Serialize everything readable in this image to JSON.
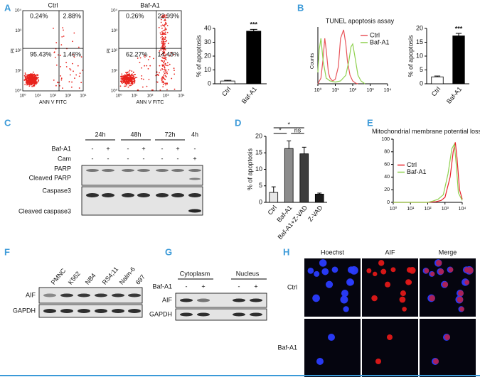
{
  "panel_labels": [
    "A",
    "B",
    "C",
    "D",
    "E",
    "F",
    "G",
    "H"
  ],
  "flow_plots": {
    "axis_ticks": [
      "10⁰",
      "10¹",
      "10²",
      "10³",
      "10⁴"
    ],
    "x_label": "ANN V FITC",
    "y_label": "PI",
    "plots": [
      {
        "title": "Ctrl",
        "quadrants": [
          "0.24%",
          "2.88%",
          "95.43%",
          "1.46%"
        ]
      },
      {
        "title": "Baf-A1",
        "quadrants": [
          "0.26%",
          "22.99%",
          "62.27%",
          "14.48%"
        ]
      }
    ]
  },
  "chart_data": [
    {
      "type": "bar",
      "ylabel": "% of apoptosis",
      "categories": [
        "Ctrl",
        "Baf-A1"
      ],
      "values": [
        2,
        38
      ],
      "errors": [
        0.5,
        1.3
      ],
      "colors": [
        "#ffffff",
        "#000000"
      ],
      "ylim": [
        0,
        40
      ],
      "yticks": [
        0,
        10,
        20,
        30,
        40
      ],
      "annotations": [
        "***"
      ]
    },
    {
      "type": "line",
      "title": "TUNEL apoptosis assay",
      "ylabel": "Counts",
      "xscale": "log",
      "xlim": [
        1,
        10000
      ],
      "xticks": [
        {
          "value": 1,
          "label": "10⁰"
        },
        {
          "value": 10,
          "label": "10¹"
        },
        {
          "value": 100,
          "label": "10²"
        },
        {
          "value": 1000,
          "label": "10³"
        },
        {
          "value": 10000,
          "label": "10⁴"
        }
      ],
      "ylim": [
        0,
        100
      ],
      "legend": "upper right",
      "series": [
        {
          "name": "Ctrl",
          "color": "#e8545a",
          "x": [
            1,
            1.5,
            2,
            2.5,
            3,
            4,
            5,
            7,
            10,
            15,
            20,
            30,
            40,
            50,
            70,
            100,
            150,
            200
          ],
          "values": [
            0,
            10,
            45,
            80,
            60,
            20,
            10,
            5,
            8,
            30,
            80,
            95,
            70,
            40,
            15,
            5,
            1,
            0
          ]
        },
        {
          "name": "Baf-A1",
          "color": "#8fd14f",
          "x": [
            1,
            1.2,
            1.5,
            2,
            3,
            5,
            10,
            20,
            40,
            60,
            80,
            100,
            130,
            200,
            300,
            500
          ],
          "values": [
            20,
            60,
            80,
            40,
            10,
            5,
            3,
            5,
            15,
            40,
            65,
            70,
            50,
            15,
            5,
            0
          ]
        }
      ]
    },
    {
      "type": "bar",
      "ylabel": "% of apoptosis",
      "categories": [
        "Ctrl",
        "Baf-A1"
      ],
      "values": [
        2.5,
        17.3
      ],
      "errors": [
        0.3,
        0.9
      ],
      "colors": [
        "#ffffff",
        "#000000"
      ],
      "ylim": [
        0,
        20
      ],
      "yticks": [
        0,
        5,
        10,
        15,
        20
      ],
      "annotations": [
        "***"
      ]
    },
    {
      "type": "bar",
      "ylabel": "% of apoptosis",
      "categories": [
        "Ctrl",
        "Baf-A1",
        "Baf-A1+Z-VAD",
        "Z-VAD"
      ],
      "values": [
        3,
        16.3,
        14.7,
        2.5
      ],
      "errors": [
        1.7,
        2.3,
        2,
        0.3
      ],
      "colors": [
        "#e6e6e6",
        "#8c8c8c",
        "#3c3c3c",
        "#1a1a1a"
      ],
      "ylim": [
        0,
        20
      ],
      "yticks": [
        0,
        5,
        10,
        15,
        20
      ],
      "annotations": [
        "*",
        "*",
        "ns"
      ]
    },
    {
      "type": "line",
      "title": "Mitochondrial membrane potential loss",
      "xscale": "log",
      "xlim": [
        1,
        10000
      ],
      "xticks": [
        {
          "value": 1,
          "label": "10⁰"
        },
        {
          "value": 10,
          "label": "10¹"
        },
        {
          "value": 100,
          "label": "10²"
        },
        {
          "value": 1000,
          "label": "10³"
        },
        {
          "value": 10000,
          "label": "10⁴"
        }
      ],
      "ylim": [
        0,
        100
      ],
      "yticks": [
        0,
        20,
        40,
        60,
        80,
        100
      ],
      "legend": "center left",
      "series": [
        {
          "name": "Ctrl",
          "color": "#e8232a",
          "x": [
            1,
            100,
            300,
            600,
            1000,
            2000,
            3000,
            4000,
            5000,
            7000,
            10000
          ],
          "values": [
            0,
            0,
            1,
            3,
            8,
            40,
            80,
            95,
            70,
            20,
            5
          ]
        },
        {
          "name": "Baf-A1",
          "color": "#8fd14f",
          "x": [
            1,
            100,
            200,
            400,
            800,
            1500,
            2500,
            3500,
            4500,
            6000,
            10000
          ],
          "values": [
            0,
            0,
            2,
            5,
            12,
            45,
            85,
            92,
            60,
            15,
            3
          ]
        }
      ]
    }
  ],
  "blot_c": {
    "times": [
      "24h",
      "48h",
      "72h",
      "4h"
    ],
    "rows": [
      {
        "label": "Baf-A1",
        "signs": [
          "-",
          "+",
          "-",
          "+",
          "-",
          "+",
          "-"
        ]
      },
      {
        "label": "Cam",
        "signs": [
          "-",
          "-",
          "-",
          "-",
          "-",
          "-",
          "+"
        ]
      }
    ],
    "bands": [
      "PARP",
      "Cleaved PARP",
      "Caspase3",
      "Cleaved caspase3"
    ]
  },
  "blot_f": {
    "lanes": [
      "PMNC",
      "K562",
      "NB4",
      "RS4;11",
      "Nalm-6",
      "697"
    ],
    "bands": [
      "AIF",
      "GAPDH"
    ]
  },
  "blot_g": {
    "groups": [
      "Cytoplasm",
      "Nucleus"
    ],
    "row": {
      "label": "Baf-A1",
      "signs": [
        "-",
        "+",
        "-",
        "+"
      ]
    },
    "bands": [
      "AIF",
      "GAPDH"
    ]
  },
  "micrographs": {
    "columns": [
      "Hoechst",
      "AIF",
      "Merge"
    ],
    "rows": [
      "Ctrl",
      "Baf-A1"
    ]
  }
}
